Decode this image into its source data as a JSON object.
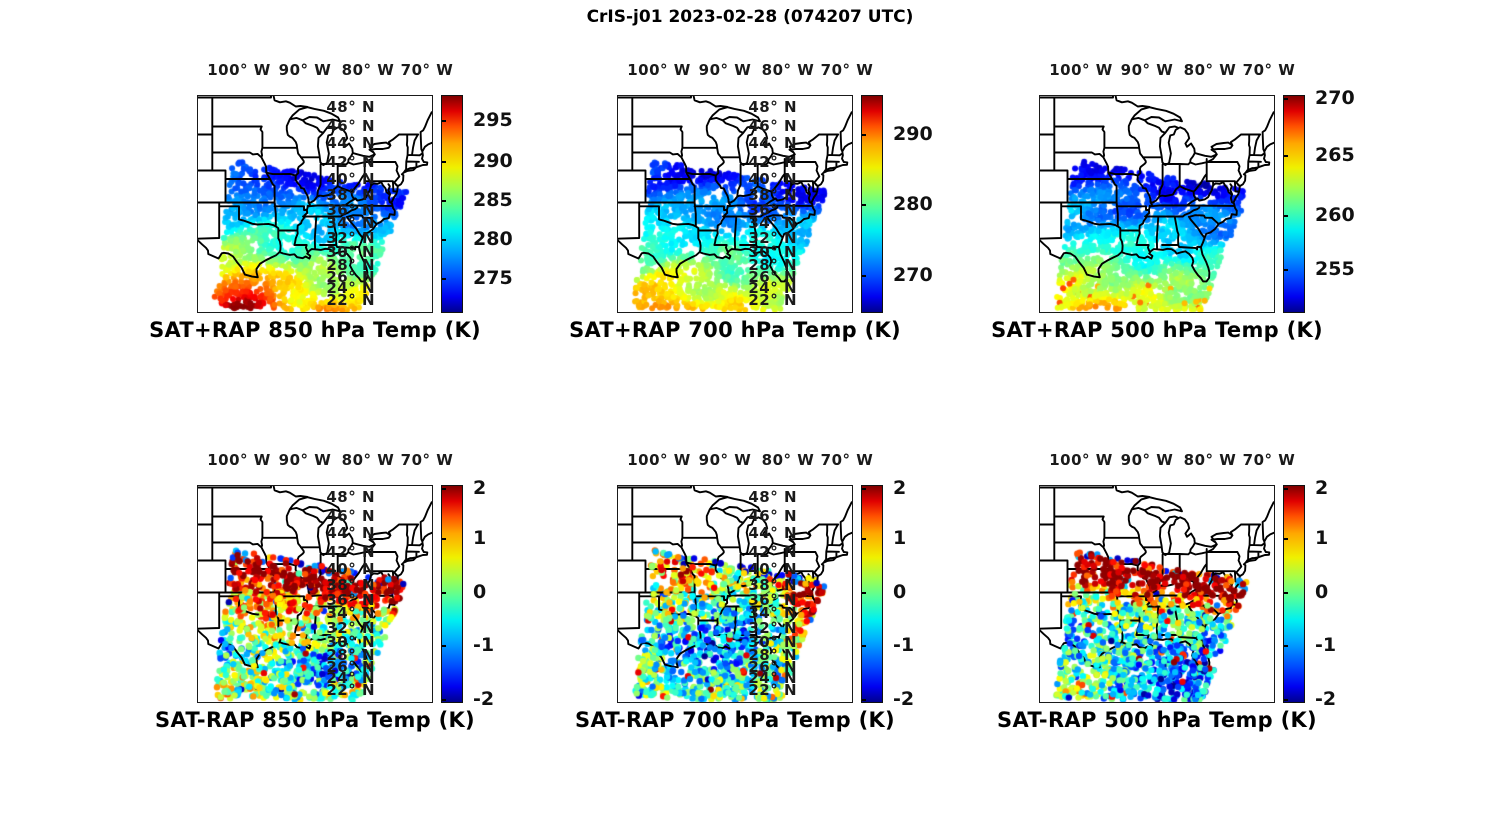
{
  "figure_title": "CrIS-j01 2023-02-28 (074207 UTC)",
  "axis": {
    "lon_labels": [
      "100° W",
      "90° W",
      "80° W",
      "70° W"
    ],
    "lat_labels": [
      "48° N",
      "46° N",
      "44° N",
      "42° N",
      "40° N",
      "38° N",
      "36° N",
      "34° N",
      "32° N",
      "30° N",
      "28° N",
      "26° N",
      "24° N",
      "22° N"
    ]
  },
  "colormap": "jet",
  "panels": [
    {
      "title": "SAT+RAP 850 hPa Temp (K)",
      "colorbar_ticks": [
        "295",
        "290",
        "285",
        "280",
        "275"
      ]
    },
    {
      "title": "SAT+RAP 700 hPa Temp (K)",
      "colorbar_ticks": [
        "290",
        "280",
        "270"
      ]
    },
    {
      "title": "SAT+RAP 500 hPa Temp (K)",
      "colorbar_ticks": [
        "270",
        "265",
        "260",
        "255"
      ]
    },
    {
      "title": "SAT-RAP 850 hPa Temp (K)",
      "colorbar_ticks": [
        "2",
        "1",
        "0",
        "-1",
        "-2"
      ]
    },
    {
      "title": "SAT-RAP 700 hPa Temp (K)",
      "colorbar_ticks": [
        "2",
        "1",
        "0",
        "-1",
        "-2"
      ]
    },
    {
      "title": "SAT-RAP 500 hPa Temp (K)",
      "colorbar_ticks": [
        "2",
        "1",
        "0",
        "-1",
        "-2"
      ]
    }
  ],
  "chart_data": [
    {
      "type": "scatter",
      "position": "row 1 col 1",
      "title": "SAT+RAP 850 hPa Temp (K)",
      "x_axis": {
        "label": "longitude",
        "side": "top",
        "tick_values_deg_w": [
          100,
          90,
          80,
          70
        ]
      },
      "y_axis": {
        "label": "latitude",
        "side": "left",
        "tick_values_deg_n": [
          48,
          46,
          44,
          42,
          40,
          38,
          36,
          34,
          32,
          30,
          28,
          26,
          24,
          22
        ]
      },
      "colorbar": {
        "colormap": "jet",
        "units": "K",
        "tick_values": [
          295,
          290,
          285,
          280,
          275
        ],
        "approx_range": [
          271,
          297
        ]
      },
      "basemap": "US state boundaries, central/eastern United States",
      "value_pattern": "Tilted satellite swath covering ~22N-42N: ~274-278 K (dark blue) along the northern edge near 40-42N, ~280-284 K (cyan/green) near 34-38N, ~286-291 K (yellow/orange) south of 30N, and ~292-296 K (red) spots over south Texas, the western Gulf coast and the far southern edge"
    },
    {
      "type": "scatter",
      "position": "row 1 col 2",
      "title": "SAT+RAP 700 hPa Temp (K)",
      "x_axis": {
        "label": "longitude",
        "side": "top",
        "tick_values_deg_w": [
          100,
          90,
          80,
          70
        ]
      },
      "y_axis": {
        "label": "latitude",
        "side": "left",
        "tick_values_deg_n": [
          48,
          46,
          44,
          42,
          40,
          38,
          36,
          34,
          32,
          30,
          28,
          26,
          24,
          22
        ]
      },
      "colorbar": {
        "colormap": "jet",
        "units": "K",
        "tick_values": [
          290,
          280,
          270
        ],
        "approx_range": [
          265,
          296
        ]
      },
      "basemap": "US state boundaries, central/eastern United States",
      "value_pattern": "Same swath: ~267-271 K (dark blue) near 40-42N, ~274-279 K (cyan) in mid-latitudes, ~281-285 K (yellow) south of 28N with light orange over south Texas / northern Mexico"
    },
    {
      "type": "scatter",
      "position": "row 1 col 3",
      "title": "SAT+RAP 500 hPa Temp (K)",
      "x_axis": {
        "label": "longitude",
        "side": "top",
        "tick_values_deg_w": [
          100,
          90,
          80,
          70
        ]
      },
      "y_axis": {
        "label": "latitude",
        "side": "left",
        "tick_values_deg_n": [
          48,
          46,
          44,
          42,
          40,
          38,
          36,
          34,
          32,
          30,
          28,
          26,
          24,
          22
        ]
      },
      "colorbar": {
        "colormap": "jet",
        "units": "K",
        "tick_values": [
          270,
          265,
          260,
          255
        ],
        "approx_range": [
          251,
          270
        ]
      },
      "basemap": "US state boundaries, central/eastern United States",
      "value_pattern": "Same swath: ~253-256 K (dark blue) near 40-42N, ~258-261 K (cyan/green) in mid-latitudes, ~262-264 K (yellow) south of 28N with a few ~266-268 K (orange/red) spots along the far southern edge"
    },
    {
      "type": "scatter",
      "position": "row 2 col 1",
      "title": "SAT-RAP 850 hPa Temp (K)",
      "x_axis": {
        "label": "longitude",
        "side": "top",
        "tick_values_deg_w": [
          100,
          90,
          80,
          70
        ]
      },
      "y_axis": {
        "label": "latitude",
        "side": "left",
        "tick_values_deg_n": [
          48,
          46,
          44,
          42,
          40,
          38,
          36,
          34,
          32,
          30,
          28,
          26,
          24,
          22
        ]
      },
      "colorbar": {
        "colormap": "jet",
        "units": "K",
        "tick_values": [
          2,
          1,
          0,
          -1,
          -2
        ],
        "approx_range": [
          -2,
          2
        ]
      },
      "basemap": "US state boundaries, central/eastern United States",
      "value_pattern": "Speckled SAT minus RAP differences: strong warm bias +1.5 to +2 K (dark red) band along the northwest/top of the swath (~38-42N) and over Missouri/Arkansas, mixed near-zero (green/yellow) mid-swath, cool bias -1 to -2 K (blue) over the Gulf coast and 22-28N with scattered outliers"
    },
    {
      "type": "scatter",
      "position": "row 2 col 2",
      "title": "SAT-RAP 700 hPa Temp (K)",
      "x_axis": {
        "label": "longitude",
        "side": "top",
        "tick_values_deg_w": [
          100,
          90,
          80,
          70
        ]
      },
      "y_axis": {
        "label": "latitude",
        "side": "left",
        "tick_values_deg_n": [
          48,
          46,
          44,
          42,
          40,
          38,
          36,
          34,
          32,
          30,
          28,
          26,
          24,
          22
        ]
      },
      "colorbar": {
        "colormap": "jet",
        "units": "K",
        "tick_values": [
          2,
          1,
          0,
          -1,
          -2
        ],
        "approx_range": [
          -2,
          2
        ]
      },
      "basemap": "US state boundaries, central/eastern United States",
      "value_pattern": "Mostly near-zero (green/cyan) differences with +1 to +2 K (orange/red) along the northern swath edge and mid-Atlantic coast, and -1 to -2 K (blue) patches over the southeast and Gulf ~24-32N"
    },
    {
      "type": "scatter",
      "position": "row 2 col 3",
      "title": "SAT-RAP 500 hPa Temp (K)",
      "x_axis": {
        "label": "longitude",
        "side": "top",
        "tick_values_deg_w": [
          100,
          90,
          80,
          70
        ]
      },
      "y_axis": {
        "label": "latitude",
        "side": "left",
        "tick_values_deg_n": [
          48,
          46,
          44,
          42,
          40,
          38,
          36,
          34,
          32,
          30,
          28,
          26,
          24,
          22
        ]
      },
      "colorbar": {
        "colormap": "jet",
        "units": "K",
        "tick_values": [
          2,
          1,
          0,
          -1,
          -2
        ],
        "approx_range": [
          -2,
          2
        ]
      },
      "basemap": "US state boundaries, central/eastern United States",
      "value_pattern": "Solid +1.5 to +2 K (dark red) band along the top of the swath (~40-42N), near-zero to -1.5 K (cyan/blue) over most of the south and southeast, with yellow/orange patches near the southwestern bottom edge"
    }
  ]
}
